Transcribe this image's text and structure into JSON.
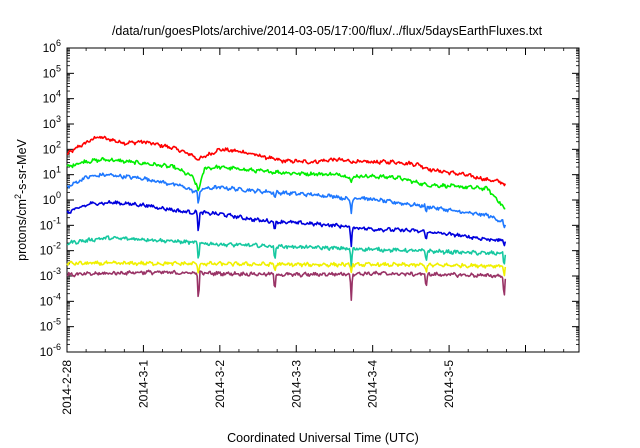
{
  "chart_data": {
    "type": "line",
    "title": "/data/run/goesPlots/archive/2014-03-05/17:00/flux/../flux/5daysEarthFluxes.txt",
    "xlabel": "Coordinated Universal Time (UTC)",
    "ylabel_prefix": "protons/cm",
    "ylabel_sup": "2",
    "ylabel_suffix": "-s-sr-MeV",
    "xlim": [
      0,
      6.7
    ],
    "ylim_log10": [
      -6,
      6
    ],
    "yscale": "log",
    "grid": false,
    "y_ticks": [
      {
        "mant": "10",
        "exp": "-6",
        "value": -6
      },
      {
        "mant": "10",
        "exp": "-5",
        "value": -5
      },
      {
        "mant": "10",
        "exp": "-4",
        "value": -4
      },
      {
        "mant": "10",
        "exp": "-3",
        "value": -3
      },
      {
        "mant": "10",
        "exp": "-2",
        "value": -2
      },
      {
        "mant": "10",
        "exp": "-1",
        "value": -1
      },
      {
        "mant": "10",
        "exp": "0",
        "value": 0
      },
      {
        "mant": "10",
        "exp": "1",
        "value": 1
      },
      {
        "mant": "10",
        "exp": "2",
        "value": 2
      },
      {
        "mant": "10",
        "exp": "3",
        "value": 3
      },
      {
        "mant": "10",
        "exp": "4",
        "value": 4
      },
      {
        "mant": "10",
        "exp": "5",
        "value": 5
      },
      {
        "mant": "10",
        "exp": "6",
        "value": 6
      }
    ],
    "x_ticks": [
      {
        "label": "2014-2-28",
        "day": 0
      },
      {
        "label": "2014-3-1",
        "day": 1
      },
      {
        "label": "2014-3-2",
        "day": 2
      },
      {
        "label": "2014-3-3",
        "day": 3
      },
      {
        "label": "2014-3-4",
        "day": 4
      },
      {
        "label": "2014-3-5",
        "day": 5
      }
    ],
    "series": [
      {
        "color": "#ff0000",
        "anchors": [
          [
            0.0,
            1.8
          ],
          [
            0.15,
            2.1
          ],
          [
            0.4,
            2.5
          ],
          [
            0.75,
            2.25
          ],
          [
            1.0,
            2.3
          ],
          [
            1.4,
            2.05
          ],
          [
            1.65,
            1.75
          ],
          [
            1.72,
            1.6
          ],
          [
            2.0,
            2.0
          ],
          [
            2.3,
            1.9
          ],
          [
            2.8,
            1.55
          ],
          [
            3.2,
            1.5
          ],
          [
            3.5,
            1.6
          ],
          [
            3.8,
            1.5
          ],
          [
            4.3,
            1.5
          ],
          [
            4.6,
            1.4
          ],
          [
            4.75,
            1.2
          ],
          [
            5.2,
            1.0
          ],
          [
            5.5,
            0.8
          ],
          [
            5.7,
            0.7
          ],
          [
            5.74,
            0.55
          ]
        ],
        "dips": []
      },
      {
        "color": "#00ee00",
        "anchors": [
          [
            0.0,
            1.3
          ],
          [
            0.2,
            1.5
          ],
          [
            0.5,
            1.6
          ],
          [
            1.0,
            1.45
          ],
          [
            1.4,
            1.3
          ],
          [
            1.65,
            0.9
          ],
          [
            1.72,
            0.4
          ],
          [
            1.8,
            1.25
          ],
          [
            2.0,
            1.3
          ],
          [
            2.5,
            1.15
          ],
          [
            3.0,
            1.05
          ],
          [
            3.6,
            1.0
          ],
          [
            3.72,
            0.85
          ],
          [
            3.8,
            0.95
          ],
          [
            4.3,
            0.9
          ],
          [
            4.7,
            0.6
          ],
          [
            5.0,
            0.55
          ],
          [
            5.5,
            0.45
          ],
          [
            5.74,
            -0.35
          ]
        ],
        "dips": [
          [
            1.72,
            0.3
          ],
          [
            3.72,
            0.7
          ],
          [
            5.72,
            -0.4
          ]
        ]
      },
      {
        "color": "#1e78ff",
        "anchors": [
          [
            0.0,
            0.5
          ],
          [
            0.25,
            0.9
          ],
          [
            0.5,
            1.0
          ],
          [
            1.0,
            0.85
          ],
          [
            1.5,
            0.55
          ],
          [
            1.7,
            0.3
          ],
          [
            1.8,
            0.45
          ],
          [
            2.0,
            0.5
          ],
          [
            2.5,
            0.35
          ],
          [
            3.0,
            0.25
          ],
          [
            3.5,
            0.15
          ],
          [
            3.72,
            0.0
          ],
          [
            3.8,
            0.1
          ],
          [
            4.3,
            -0.1
          ],
          [
            4.7,
            -0.25
          ],
          [
            5.2,
            -0.5
          ],
          [
            5.5,
            -0.6
          ],
          [
            5.74,
            -0.9
          ]
        ],
        "dips": [
          [
            1.72,
            -0.2
          ],
          [
            2.72,
            0.0
          ],
          [
            3.72,
            -0.5
          ],
          [
            4.7,
            -0.5
          ],
          [
            5.72,
            -1.2
          ]
        ]
      },
      {
        "color": "#0000dd",
        "anchors": [
          [
            0.0,
            -0.5
          ],
          [
            0.3,
            -0.15
          ],
          [
            0.6,
            -0.1
          ],
          [
            1.0,
            -0.2
          ],
          [
            1.5,
            -0.45
          ],
          [
            1.72,
            -0.5
          ],
          [
            2.0,
            -0.55
          ],
          [
            2.5,
            -0.8
          ],
          [
            3.0,
            -0.9
          ],
          [
            3.5,
            -1.0
          ],
          [
            4.0,
            -1.15
          ],
          [
            4.5,
            -1.2
          ],
          [
            5.0,
            -1.35
          ],
          [
            5.5,
            -1.55
          ],
          [
            5.74,
            -1.6
          ]
        ],
        "dips": [
          [
            1.72,
            -1.35
          ],
          [
            2.72,
            -1.3
          ],
          [
            3.72,
            -1.9
          ],
          [
            4.7,
            -1.6
          ],
          [
            5.72,
            -1.9
          ]
        ]
      },
      {
        "color": "#16c8a0",
        "anchors": [
          [
            0.0,
            -1.7
          ],
          [
            0.5,
            -1.5
          ],
          [
            1.0,
            -1.55
          ],
          [
            1.5,
            -1.65
          ],
          [
            2.0,
            -1.75
          ],
          [
            2.5,
            -1.8
          ],
          [
            3.0,
            -1.85
          ],
          [
            3.5,
            -1.9
          ],
          [
            4.0,
            -1.95
          ],
          [
            4.5,
            -2.0
          ],
          [
            5.0,
            -2.05
          ],
          [
            5.5,
            -2.1
          ],
          [
            5.74,
            -2.1
          ]
        ],
        "dips": [
          [
            1.72,
            -2.5
          ],
          [
            2.72,
            -2.5
          ],
          [
            3.72,
            -2.7
          ],
          [
            4.7,
            -2.4
          ],
          [
            5.72,
            -2.6
          ]
        ]
      },
      {
        "color": "#f0f000",
        "anchors": [
          [
            0.0,
            -2.5
          ],
          [
            1.0,
            -2.5
          ],
          [
            2.0,
            -2.52
          ],
          [
            3.0,
            -2.55
          ],
          [
            4.0,
            -2.55
          ],
          [
            5.0,
            -2.58
          ],
          [
            5.74,
            -2.6
          ]
        ],
        "dips": [
          [
            1.72,
            -3.0
          ],
          [
            2.72,
            -2.8
          ],
          [
            3.72,
            -2.9
          ],
          [
            4.7,
            -2.85
          ],
          [
            5.72,
            -3.0
          ]
        ]
      },
      {
        "color": "#993366",
        "anchors": [
          [
            0.0,
            -2.95
          ],
          [
            1.0,
            -2.85
          ],
          [
            2.0,
            -2.9
          ],
          [
            3.0,
            -2.95
          ],
          [
            4.0,
            -2.9
          ],
          [
            5.0,
            -2.95
          ],
          [
            5.74,
            -3.0
          ]
        ],
        "dips": [
          [
            1.72,
            -4.0
          ],
          [
            2.72,
            -3.6
          ],
          [
            3.72,
            -3.9
          ],
          [
            4.7,
            -3.5
          ],
          [
            5.72,
            -4.0
          ]
        ]
      }
    ]
  }
}
